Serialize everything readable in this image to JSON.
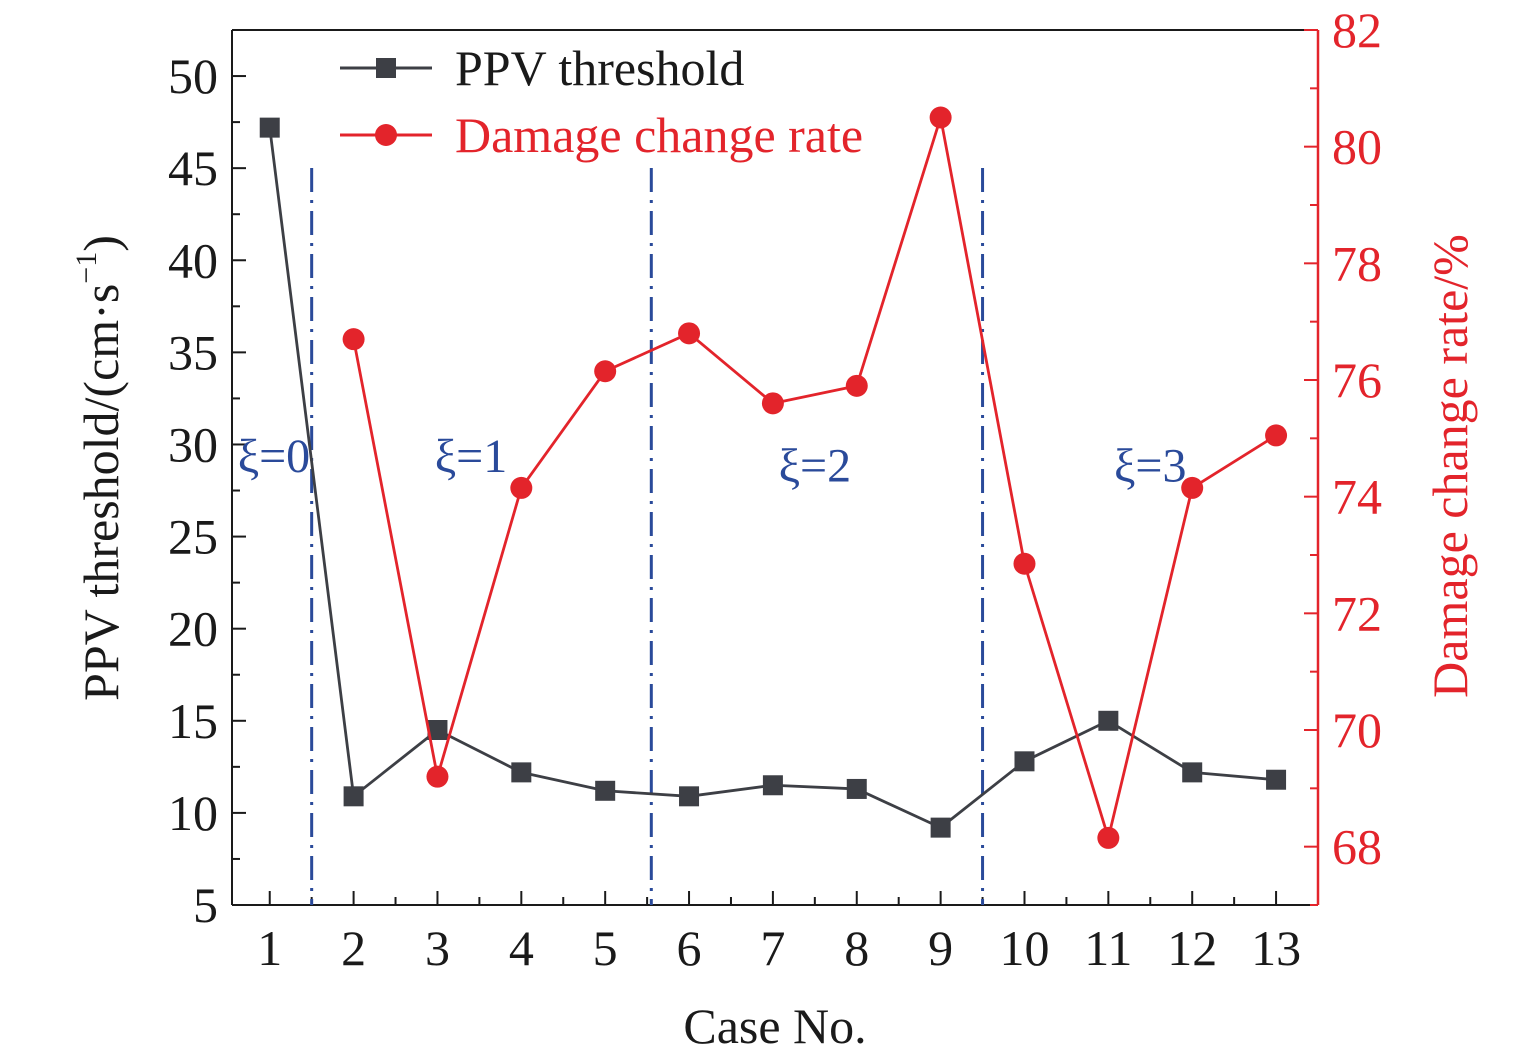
{
  "chart_data": {
    "type": "line",
    "xlabel": "Case No.",
    "ylabel_left_main": "PPV threshold/(cm·s",
    "ylabel_left_sup": "−1",
    "ylabel_left_close": ")",
    "ylabel_right": "Damage change rate/%",
    "categories": [
      "1",
      "2",
      "3",
      "4",
      "5",
      "6",
      "7",
      "8",
      "9",
      "10",
      "11",
      "12",
      "13"
    ],
    "x": [
      1,
      2,
      3,
      4,
      5,
      6,
      7,
      8,
      9,
      10,
      11,
      12,
      13
    ],
    "xlim": [
      0.55,
      13.5
    ],
    "ylim_left": [
      5,
      52.5
    ],
    "ylim_right": [
      67,
      82
    ],
    "left_ticks": [
      "5",
      "10",
      "15",
      "20",
      "25",
      "30",
      "35",
      "40",
      "45",
      "50"
    ],
    "right_ticks": [
      "68",
      "70",
      "72",
      "74",
      "76",
      "78",
      "80",
      "82"
    ],
    "series": [
      {
        "name": "PPV threshold",
        "axis": "left",
        "color": "#3d3f45",
        "marker": "square",
        "x": [
          1,
          2,
          3,
          4,
          5,
          6,
          7,
          8,
          9,
          10,
          11,
          12,
          13
        ],
        "values": [
          47.2,
          10.9,
          14.5,
          12.2,
          11.2,
          10.9,
          11.5,
          11.3,
          9.2,
          12.8,
          15.0,
          12.2,
          11.8
        ]
      },
      {
        "name": "Damage change rate",
        "axis": "right",
        "color": "#e3242b",
        "marker": "circle",
        "x": [
          2,
          3,
          4,
          5,
          6,
          7,
          8,
          9,
          10,
          11,
          12,
          13
        ],
        "values": [
          76.7,
          69.2,
          74.15,
          76.15,
          76.8,
          75.6,
          75.9,
          80.5,
          72.85,
          68.15,
          74.15,
          75.05
        ]
      }
    ],
    "separators": {
      "color": "#2a4a9a",
      "x": [
        1.5,
        5.55,
        9.5
      ]
    },
    "annotations": [
      {
        "label": "ξ=0",
        "x": 1.05,
        "y_left": 28.5
      },
      {
        "label": "ξ=1",
        "x": 3.4,
        "y_left": 28.5
      },
      {
        "label": "ξ=2",
        "x": 7.5,
        "y_left": 28.0
      },
      {
        "label": "ξ=3",
        "x": 11.5,
        "y_left": 28.0
      }
    ],
    "legend": {
      "position": "top-left",
      "entries": [
        "PPV threshold",
        "Damage change rate"
      ]
    }
  }
}
